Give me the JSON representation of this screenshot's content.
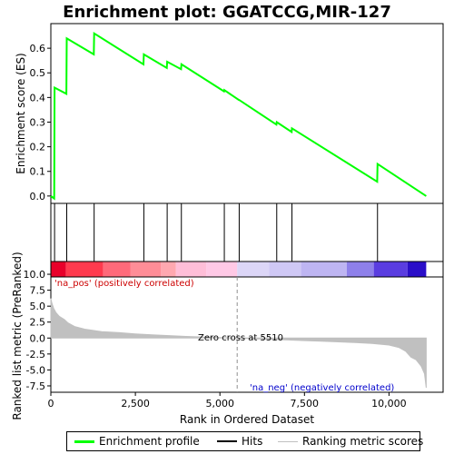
{
  "chart_data": {
    "title": "Enrichment plot: GGATCCG,MIR-127",
    "x_label": "Rank in Ordered Dataset",
    "y_label_top": "Enrichment score (ES)",
    "y_label_bottom": "Ranked list metric (PreRanked)",
    "x_range": [
      0,
      11600
    ],
    "x_ticks": [
      0,
      2500,
      5000,
      7500,
      10000
    ],
    "x_tick_labels": [
      "0",
      "2,500",
      "5,000",
      "7,500",
      "10,000"
    ],
    "es_range": [
      -0.03,
      0.7
    ],
    "es_ticks": [
      0.0,
      0.1,
      0.2,
      0.3,
      0.4,
      0.5,
      0.6
    ],
    "es_tick_labels": [
      "0.0",
      "0.1",
      "0.2",
      "0.3",
      "0.4",
      "0.5",
      "0.6"
    ],
    "metric_range": [
      -8.5,
      12.0
    ],
    "metric_ticks": [
      10.0,
      7.5,
      5.0,
      2.5,
      0.0,
      -2.5,
      -5.0,
      -7.5
    ],
    "metric_tick_labels": [
      "10.0",
      "7.5",
      "5.0",
      "2.5",
      "0.0",
      "-2.5",
      "-5.0",
      "-7.5"
    ],
    "total_genes": 11100,
    "hits": [
      110,
      470,
      1280,
      2750,
      3440,
      3860,
      5130,
      5570,
      6680,
      7130,
      9660
    ],
    "es_points": [
      [
        0,
        0.0
      ],
      [
        100,
        -0.01
      ],
      [
        110,
        0.44
      ],
      [
        460,
        0.415
      ],
      [
        470,
        0.64
      ],
      [
        1270,
        0.575
      ],
      [
        1280,
        0.66
      ],
      [
        2740,
        0.535
      ],
      [
        2750,
        0.575
      ],
      [
        3430,
        0.52
      ],
      [
        3440,
        0.545
      ],
      [
        3850,
        0.515
      ],
      [
        3860,
        0.535
      ],
      [
        5120,
        0.425
      ],
      [
        5130,
        0.43
      ],
      [
        5560,
        0.39
      ],
      [
        5570,
        0.39
      ],
      [
        6670,
        0.29
      ],
      [
        6680,
        0.3
      ],
      [
        7120,
        0.26
      ],
      [
        7130,
        0.275
      ],
      [
        9650,
        0.058
      ],
      [
        9660,
        0.13
      ],
      [
        11100,
        0.0
      ]
    ],
    "metric_curve": [
      [
        0,
        6.2
      ],
      [
        30,
        5.5
      ],
      [
        80,
        4.7
      ],
      [
        150,
        4.0
      ],
      [
        250,
        3.4
      ],
      [
        400,
        2.9
      ],
      [
        500,
        2.4
      ],
      [
        700,
        1.8
      ],
      [
        1000,
        1.4
      ],
      [
        1500,
        1.0
      ],
      [
        2000,
        0.85
      ],
      [
        2500,
        0.65
      ],
      [
        3000,
        0.5
      ],
      [
        3500,
        0.38
      ],
      [
        4000,
        0.26
      ],
      [
        4500,
        0.17
      ],
      [
        5000,
        0.08
      ],
      [
        5510,
        0.0
      ],
      [
        6000,
        -0.1
      ],
      [
        6500,
        -0.2
      ],
      [
        7000,
        -0.3
      ],
      [
        7500,
        -0.4
      ],
      [
        8000,
        -0.5
      ],
      [
        8500,
        -0.6
      ],
      [
        9000,
        -0.7
      ],
      [
        9500,
        -0.85
      ],
      [
        10000,
        -1.1
      ],
      [
        10300,
        -1.5
      ],
      [
        10500,
        -2.1
      ],
      [
        10650,
        -3.0
      ],
      [
        10800,
        -3.4
      ],
      [
        10950,
        -4.4
      ],
      [
        11050,
        -5.6
      ],
      [
        11100,
        -7.8
      ]
    ],
    "zero_cross": 5510,
    "annotations": {
      "pos": "'na_pos' (positively correlated)",
      "neg": "'na_neg' (negatively correlated)",
      "zero": "Zero cross at 5510"
    },
    "heat_bands": [
      {
        "from": 0,
        "to": 450,
        "color": "#e8002a"
      },
      {
        "from": 450,
        "to": 1550,
        "color": "#ff3a4e"
      },
      {
        "from": 1550,
        "to": 2350,
        "color": "#ff6a7a"
      },
      {
        "from": 2350,
        "to": 3250,
        "color": "#ff8d97"
      },
      {
        "from": 3250,
        "to": 3700,
        "color": "#ffa8b0"
      },
      {
        "from": 3700,
        "to": 4600,
        "color": "#ffbed8"
      },
      {
        "from": 4600,
        "to": 5510,
        "color": "#ffc9e6"
      },
      {
        "from": 5510,
        "to": 6450,
        "color": "#dcd6f7"
      },
      {
        "from": 6450,
        "to": 7400,
        "color": "#cfc8f5"
      },
      {
        "from": 7400,
        "to": 8750,
        "color": "#beb5f2"
      },
      {
        "from": 8750,
        "to": 9550,
        "color": "#8e80ea"
      },
      {
        "from": 9550,
        "to": 10550,
        "color": "#5a3de0"
      },
      {
        "from": 10550,
        "to": 11100,
        "color": "#2a0ec8"
      }
    ],
    "colors": {
      "es_line": "#00ff00",
      "hits": "#000000",
      "metric_fill": "#c0c0c0",
      "pos_text": "#cc0000",
      "neg_text": "#0000cc",
      "zero_line": "#909090"
    }
  },
  "legend": {
    "enrichment_profile": "Enrichment profile",
    "hits": "Hits",
    "ranking_metric": "Ranking metric scores"
  }
}
